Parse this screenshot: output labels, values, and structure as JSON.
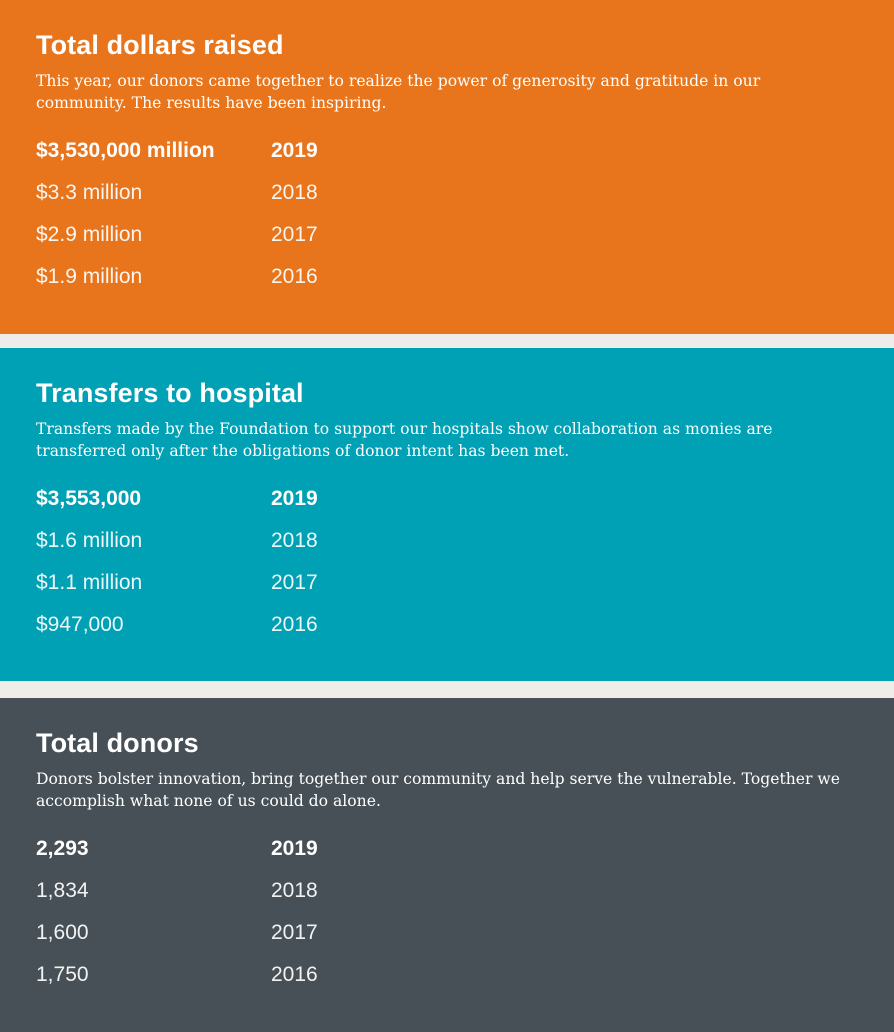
{
  "panels": [
    {
      "title": "Total dollars raised",
      "description": "This year, our donors came together to realize the power of generosity and gratitude in our community. The results have been inspiring.",
      "color": "#e8751c",
      "rows": [
        {
          "value": "$3,530,000 million",
          "year": "2019"
        },
        {
          "value": "$3.3 million",
          "year": "2018"
        },
        {
          "value": "$2.9 million",
          "year": "2017"
        },
        {
          "value": "$1.9 million",
          "year": "2016"
        }
      ]
    },
    {
      "title": "Transfers to hospital",
      "description": "Transfers made by the Foundation to support our hospitals show collaboration as monies are transferred only after the obligations of donor intent has been met.",
      "color": "#00a0b5",
      "rows": [
        {
          "value": "$3,553,000",
          "year": "2019"
        },
        {
          "value": "$1.6 million",
          "year": "2018"
        },
        {
          "value": "$1.1 million",
          "year": "2017"
        },
        {
          "value": "$947,000",
          "year": "2016"
        }
      ]
    },
    {
      "title": "Total donors",
      "description": "Donors bolster innovation, bring together our community and help serve the vulnerable. Together we accomplish what none of us could do alone.",
      "color": "#475056",
      "rows": [
        {
          "value": "2,293",
          "year": "2019"
        },
        {
          "value": "1,834",
          "year": "2018"
        },
        {
          "value": "1,600",
          "year": "2017"
        },
        {
          "value": "1,750",
          "year": "2016"
        }
      ]
    }
  ]
}
